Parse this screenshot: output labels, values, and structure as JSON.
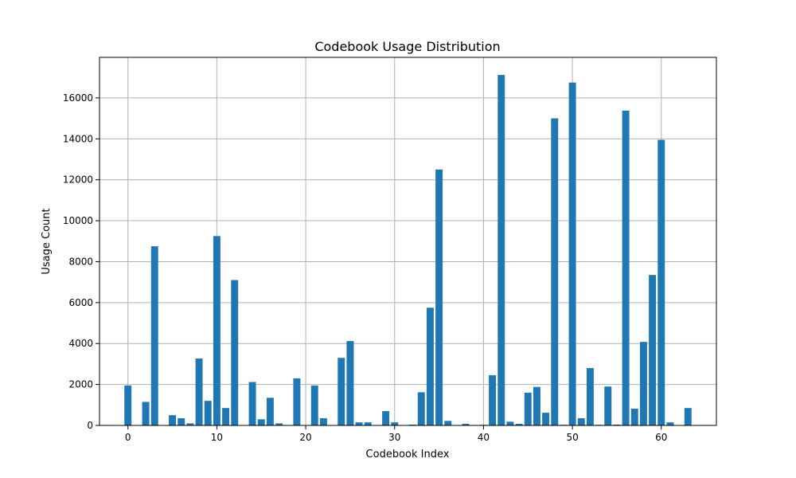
{
  "chart_data": {
    "type": "bar",
    "title": "Codebook Usage Distribution",
    "xlabel": "Codebook Index",
    "ylabel": "Usage Count",
    "xlim": [
      -3.2,
      66.2
    ],
    "ylim": [
      0,
      17980
    ],
    "x_ticks": [
      0,
      10,
      20,
      30,
      40,
      50,
      60
    ],
    "y_ticks": [
      0,
      2000,
      4000,
      6000,
      8000,
      10000,
      12000,
      14000,
      16000
    ],
    "grid": true,
    "bar_color": "#1f77b4",
    "x": [
      0,
      1,
      2,
      3,
      4,
      5,
      6,
      7,
      8,
      9,
      10,
      11,
      12,
      13,
      14,
      15,
      16,
      17,
      18,
      19,
      20,
      21,
      22,
      23,
      24,
      25,
      26,
      27,
      28,
      29,
      30,
      31,
      32,
      33,
      34,
      35,
      36,
      37,
      38,
      39,
      40,
      41,
      42,
      43,
      44,
      45,
      46,
      47,
      48,
      49,
      50,
      51,
      52,
      53,
      54,
      55,
      56,
      57,
      58,
      59,
      60,
      61,
      62,
      63
    ],
    "values": [
      1950,
      0,
      1150,
      8750,
      0,
      500,
      350,
      100,
      3270,
      1200,
      9250,
      850,
      7100,
      0,
      2120,
      300,
      1350,
      100,
      0,
      2300,
      0,
      1950,
      350,
      0,
      3300,
      4120,
      150,
      150,
      0,
      700,
      150,
      0,
      40,
      1620,
      5750,
      12500,
      220,
      0,
      80,
      0,
      30,
      2450,
      17120,
      180,
      80,
      1600,
      1880,
      620,
      15000,
      30,
      16750,
      350,
      2800,
      30,
      1900,
      40,
      15380,
      820,
      4080,
      7350,
      13950,
      150,
      0,
      850
    ]
  }
}
